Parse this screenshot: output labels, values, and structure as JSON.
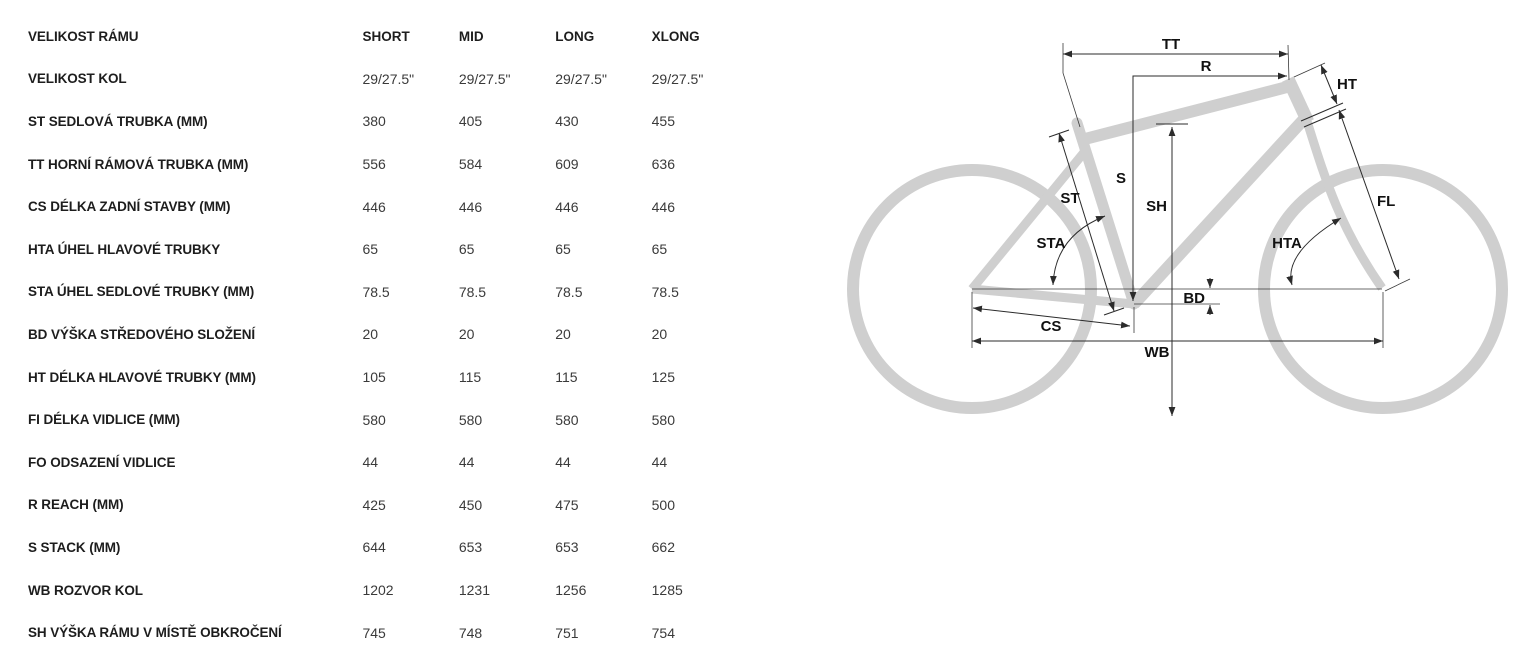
{
  "table": {
    "header": {
      "label": "VELIKOST RÁMU",
      "columns": [
        "SHORT",
        "MID",
        "LONG",
        "XLONG"
      ]
    },
    "rows": [
      {
        "label": "VELIKOST KOL",
        "values": [
          "29/27.5\"",
          "29/27.5\"",
          "29/27.5\"",
          "29/27.5\""
        ]
      },
      {
        "label": "ST SEDLOVÁ TRUBKA (MM)",
        "values": [
          "380",
          "405",
          "430",
          "455"
        ]
      },
      {
        "label": "TT HORNÍ RÁMOVÁ TRUBKA (MM)",
        "values": [
          "556",
          "584",
          "609",
          "636"
        ]
      },
      {
        "label": "CS DÉLKA ZADNÍ STAVBY (MM)",
        "values": [
          "446",
          "446",
          "446",
          "446"
        ]
      },
      {
        "label": "HTA ÚHEL HLAVOVÉ TRUBKY",
        "values": [
          "65",
          "65",
          "65",
          "65"
        ]
      },
      {
        "label": "STA ÚHEL SEDLOVÉ TRUBKY (MM)",
        "values": [
          "78.5",
          "78.5",
          "78.5",
          "78.5"
        ]
      },
      {
        "label": "BD VÝŠKA STŘEDOVÉHO SLOŽENÍ",
        "values": [
          "20",
          "20",
          "20",
          "20"
        ]
      },
      {
        "label": "HT DÉLKA HLAVOVÉ TRUBKY (MM)",
        "values": [
          "105",
          "115",
          "115",
          "125"
        ]
      },
      {
        "label": "FI DÉLKA VIDLICE (MM)",
        "values": [
          "580",
          "580",
          "580",
          "580"
        ]
      },
      {
        "label": "FO ODSAZENÍ VIDLICE",
        "values": [
          "44",
          "44",
          "44",
          "44"
        ]
      },
      {
        "label": "R REACH (MM)",
        "values": [
          "425",
          "450",
          "475",
          "500"
        ]
      },
      {
        "label": "S STACK (MM)",
        "values": [
          "644",
          "653",
          "653",
          "662"
        ]
      },
      {
        "label": "WB ROZVOR KOL",
        "values": [
          "1202",
          "1231",
          "1256",
          "1285"
        ]
      },
      {
        "label": "SH VÝŠKA RÁMU V MÍSTĚ OBKROČENÍ",
        "values": [
          "745",
          "748",
          "751",
          "754"
        ]
      }
    ]
  },
  "diagram": {
    "labels": {
      "tt": "TT",
      "r": "R",
      "ht": "HT",
      "st": "ST",
      "s": "S",
      "sh": "SH",
      "sta": "STA",
      "hta": "HTA",
      "fl": "FL",
      "bd": "BD",
      "cs": "CS",
      "wb": "WB"
    }
  },
  "colors": {
    "frame_gray": "#cfcfcf",
    "dimension_line": "#2b2b2b",
    "label_text": "#111111",
    "table_label_text": "#1d1d1d",
    "table_value_text": "#3a3a3a"
  }
}
